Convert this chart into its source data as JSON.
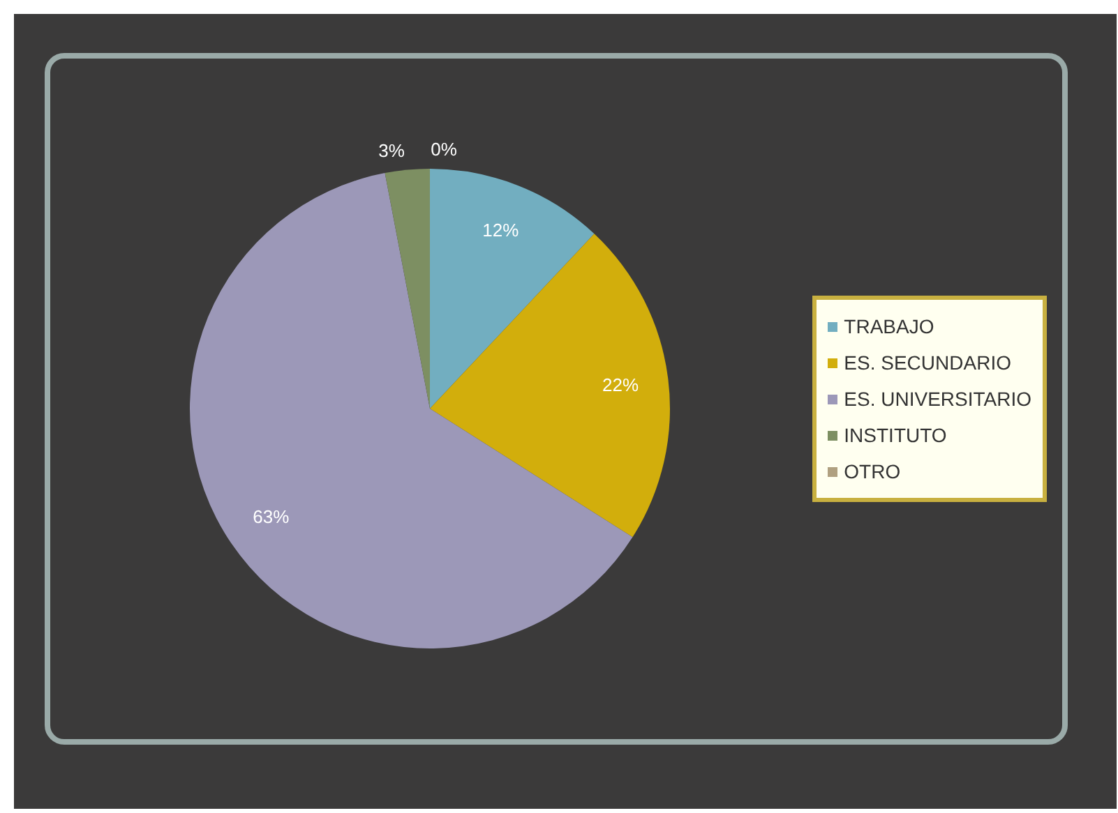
{
  "chart_data": {
    "type": "pie",
    "categories": [
      "TRABAJO",
      "ES. SECUNDARIO",
      "ES. UNIVERSITARIO",
      "INSTITUTO",
      "OTRO"
    ],
    "values": [
      12,
      22,
      63,
      3,
      0
    ],
    "colors": [
      "#72aec0",
      "#d2ae0c",
      "#9c98b8",
      "#7d8f62",
      "#b0a080"
    ],
    "value_labels": [
      "12%",
      "22%",
      "63%",
      "3%",
      "0%"
    ],
    "legend": "right"
  }
}
